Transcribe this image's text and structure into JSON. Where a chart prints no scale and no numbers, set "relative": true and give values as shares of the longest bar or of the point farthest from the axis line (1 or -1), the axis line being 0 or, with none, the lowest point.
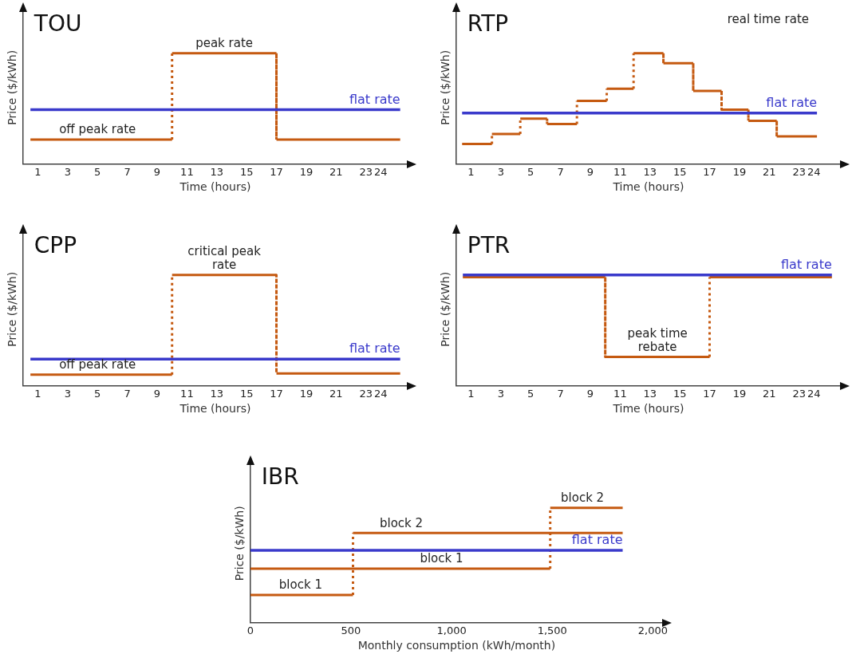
{
  "chart_data": [
    {
      "type": "line",
      "title": "TOU",
      "xlabel": "Time (hours)",
      "ylabel": "Price ($/kWh)",
      "relative": true,
      "xlim": [
        0,
        25.8
      ],
      "xticks": [
        1,
        3,
        5,
        7,
        9,
        11,
        13,
        15,
        17,
        19,
        21,
        23,
        24
      ],
      "series": [
        {
          "color": "#c55a11",
          "x": [
            0.5,
            10,
            10,
            17,
            17,
            25.3
          ],
          "values": [
            0.22,
            0.22,
            1,
            1,
            0.22,
            0.22
          ]
        },
        {
          "name": "flat rate",
          "color": "#3a3acb",
          "x": [
            0.5,
            25.3
          ],
          "values": [
            0.49,
            0.49
          ]
        }
      ],
      "annotations": [
        {
          "text": "peak rate",
          "x": 13.5,
          "y": 1
        },
        {
          "text": "off peak rate",
          "x": 5,
          "y": 0.22
        }
      ]
    },
    {
      "type": "line",
      "title": "RTP",
      "xlabel": "Time (hours)",
      "ylabel": "Price ($/kWh)",
      "relative": true,
      "xlim": [
        0,
        25.8
      ],
      "xticks": [
        1,
        3,
        5,
        7,
        9,
        11,
        13,
        15,
        17,
        19,
        21,
        23,
        24
      ],
      "series": [
        {
          "color": "#c55a11",
          "x": [
            0.4,
            2.4,
            2.4,
            4.3,
            4.3,
            6.1,
            6.1,
            8.1,
            8.1,
            10.1,
            10.1,
            11.9,
            11.9,
            13.9,
            13.9,
            15.9,
            15.9,
            17.8,
            17.8,
            19.6,
            19.6,
            21.5,
            21.5,
            24.2
          ],
          "values": [
            0.18,
            0.18,
            0.27,
            0.27,
            0.41,
            0.41,
            0.36,
            0.36,
            0.57,
            0.57,
            0.68,
            0.68,
            1,
            1,
            0.91,
            0.91,
            0.66,
            0.66,
            0.49,
            0.49,
            0.39,
            0.39,
            0.25,
            0.25
          ]
        },
        {
          "name": "flat rate",
          "color": "#3a3acb",
          "x": [
            0.4,
            24.2
          ],
          "values": [
            0.46,
            0.46
          ]
        }
      ],
      "annotations": [
        "real time rate"
      ]
    },
    {
      "type": "line",
      "title": "CPP",
      "xlabel": "Time (hours)",
      "ylabel": "Price ($/kWh)",
      "relative": true,
      "xlim": [
        0,
        25.8
      ],
      "xticks": [
        1,
        3,
        5,
        7,
        9,
        11,
        13,
        15,
        17,
        19,
        21,
        23,
        24
      ],
      "series": [
        {
          "color": "#c55a11",
          "x": [
            0.5,
            10,
            10,
            17,
            17,
            25.3
          ],
          "values": [
            0.1,
            0.1,
            1,
            1,
            0.11,
            0.11
          ]
        },
        {
          "name": "flat rate",
          "color": "#3a3acb",
          "x": [
            0.5,
            25.3
          ],
          "values": [
            0.24,
            0.24
          ]
        }
      ],
      "annotations": [
        {
          "text": "critical peak rate",
          "x": 13.5,
          "y": 1
        },
        {
          "text": "off peak rate",
          "x": 5,
          "y": 0.1
        }
      ]
    },
    {
      "type": "line",
      "title": "PTR",
      "xlabel": "Time (hours)",
      "ylabel": "Price ($/kWh)",
      "relative": true,
      "xlim": [
        0,
        25.8
      ],
      "xticks": [
        1,
        3,
        5,
        7,
        9,
        11,
        13,
        15,
        17,
        19,
        21,
        23,
        24
      ],
      "series": [
        {
          "color": "#c55a11",
          "x": [
            0.45,
            10,
            10,
            17,
            17,
            25.2
          ],
          "values": [
            0.98,
            0.98,
            0.26,
            0.26,
            0.98,
            0.98
          ]
        },
        {
          "name": "flat rate",
          "color": "#3a3acb",
          "x": [
            0.45,
            25.2
          ],
          "values": [
            1,
            1
          ]
        }
      ],
      "annotations": [
        {
          "text": "peak time rebate",
          "x": 13.5,
          "y": 0.26
        }
      ]
    },
    {
      "type": "line",
      "title": "IBR",
      "xlabel": "Monthly consumption (kWh/month)",
      "ylabel": "Price ($/kWh)",
      "relative": true,
      "xlim": [
        0,
        2050
      ],
      "xticks": [
        0,
        500,
        {
          "value": 1000,
          "label": "1,000"
        },
        {
          "value": 1500,
          "label": "1,500"
        },
        {
          "value": 2000,
          "label": "2,000"
        }
      ],
      "series": [
        {
          "color": "#c55a11",
          "x": [
            0,
            510,
            510,
            1850
          ],
          "values": [
            0.24,
            0.24,
            0.78,
            0.78
          ]
        },
        {
          "color": "#c55a11",
          "x": [
            0,
            1490,
            1490,
            1850
          ],
          "values": [
            0.47,
            0.47,
            1,
            1
          ]
        },
        {
          "name": "flat rate",
          "color": "#3a3acb",
          "x": [
            0,
            1850
          ],
          "values": [
            0.63,
            0.63
          ]
        }
      ],
      "annotations": [
        {
          "text": "block 1",
          "x": 250,
          "y": 0.24
        },
        {
          "text": "block 2",
          "x": 750,
          "y": 0.78
        },
        {
          "text": "block 1",
          "x": 950,
          "y": 0.47
        },
        {
          "text": "block 2",
          "x": 1650,
          "y": 1
        }
      ]
    }
  ]
}
